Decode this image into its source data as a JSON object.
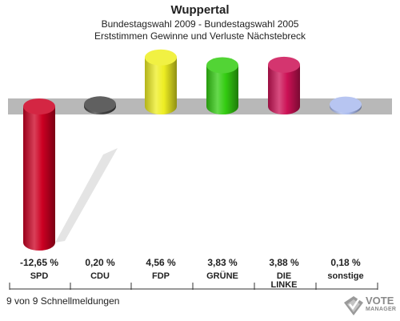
{
  "header": {
    "title": "Wuppertal",
    "subtitle_line1": "Bundestagswahl 2009 - Bundestagswahl 2005",
    "subtitle_line2": "Erststimmen Gewinne und Verluste Nächstebreck"
  },
  "chart_data": {
    "type": "bar",
    "title": "Wuppertal",
    "categories": [
      "SPD",
      "CDU",
      "FDP",
      "GRÜNE",
      "DIE LINKE",
      "sonstige"
    ],
    "value_labels": [
      "-12,65 %",
      "0,20 %",
      "4,56 %",
      "3,83 %",
      "3,88 %",
      "0,18 %"
    ],
    "series": [
      {
        "values": [
          -12.65,
          0.2,
          4.56,
          3.83,
          3.88,
          0.18
        ]
      }
    ],
    "colors": [
      "#cc0022",
      "#444444",
      "#eeee22",
      "#33cc11",
      "#cc1155",
      "#aabbee"
    ],
    "ylabel": "",
    "xlabel": "",
    "legend": "none",
    "grid": false
  },
  "footer": {
    "status": "9 von 9 Schnellmeldungen"
  },
  "logo": {
    "line1": "VOTE",
    "line2": "MANAGER"
  }
}
